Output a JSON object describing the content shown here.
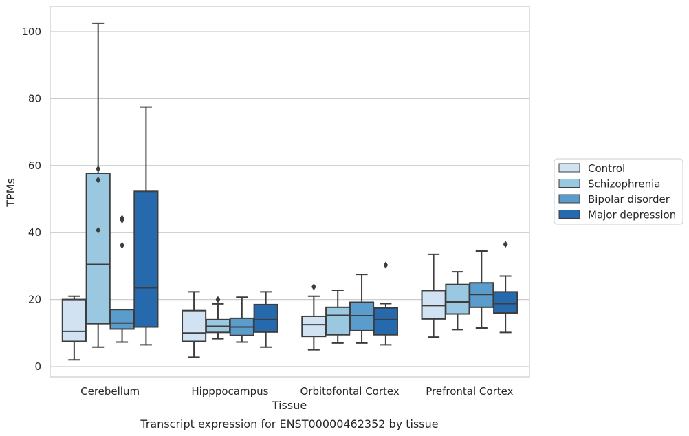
{
  "caption": "Transcript expression for ENST00000462352 by tissue",
  "chart_data": {
    "type": "box",
    "title": "",
    "xlabel": "Tissue",
    "ylabel": "TPMs",
    "ylim": [
      -3,
      107.5
    ],
    "yticks": [
      0,
      20,
      40,
      60,
      80,
      100
    ],
    "grid": "horizontal",
    "legend_position": "right",
    "categories": [
      "Cerebellum",
      "Hipppocampus",
      "Orbitofontal Cortex",
      "Prefrontal Cortex"
    ],
    "series": [
      {
        "name": "Control",
        "color": "#d1e2f2",
        "boxes": [
          {
            "whislo": 2.0,
            "q1": 7.5,
            "med": 10.5,
            "q3": 20.0,
            "whishi": 21.0,
            "fliers": []
          },
          {
            "whislo": 2.8,
            "q1": 7.5,
            "med": 10.0,
            "q3": 16.7,
            "whishi": 22.3,
            "fliers": []
          },
          {
            "whislo": 5.0,
            "q1": 9.0,
            "med": 12.5,
            "q3": 15.0,
            "whishi": 21.0,
            "fliers": [
              23.8
            ]
          },
          {
            "whislo": 8.8,
            "q1": 14.2,
            "med": 18.2,
            "q3": 22.7,
            "whishi": 33.5,
            "fliers": []
          }
        ]
      },
      {
        "name": "Schizophrenia",
        "color": "#9ac8e0",
        "boxes": [
          {
            "whislo": 5.8,
            "q1": 12.8,
            "med": 30.5,
            "q3": 57.7,
            "whishi": 102.5,
            "fliers": [
              59.0,
              55.7,
              40.7
            ]
          },
          {
            "whislo": 8.3,
            "q1": 10.2,
            "med": 12.0,
            "q3": 14.0,
            "whishi": 18.7,
            "fliers": [
              20.0
            ]
          },
          {
            "whislo": 7.0,
            "q1": 9.5,
            "med": 15.3,
            "q3": 17.7,
            "whishi": 22.8,
            "fliers": []
          },
          {
            "whislo": 11.0,
            "q1": 15.7,
            "med": 19.3,
            "q3": 24.5,
            "whishi": 28.3,
            "fliers": []
          }
        ]
      },
      {
        "name": "Bipolar disorder",
        "color": "#5a9ccb",
        "boxes": [
          {
            "whislo": 7.3,
            "q1": 11.2,
            "med": 13.0,
            "q3": 17.0,
            "whishi": 17.0,
            "fliers": [
              44.3,
              43.7,
              36.2
            ]
          },
          {
            "whislo": 7.3,
            "q1": 9.3,
            "med": 11.8,
            "q3": 14.4,
            "whishi": 20.7,
            "fliers": []
          },
          {
            "whislo": 7.0,
            "q1": 10.7,
            "med": 15.2,
            "q3": 19.2,
            "whishi": 27.5,
            "fliers": []
          },
          {
            "whislo": 11.5,
            "q1": 17.7,
            "med": 21.5,
            "q3": 25.0,
            "whishi": 34.5,
            "fliers": []
          }
        ]
      },
      {
        "name": "Major depression",
        "color": "#2669ac",
        "boxes": [
          {
            "whislo": 6.5,
            "q1": 11.8,
            "med": 23.5,
            "q3": 52.3,
            "whishi": 77.5,
            "fliers": []
          },
          {
            "whislo": 5.8,
            "q1": 10.3,
            "med": 14.0,
            "q3": 18.5,
            "whishi": 22.3,
            "fliers": []
          },
          {
            "whislo": 6.5,
            "q1": 9.5,
            "med": 14.0,
            "q3": 17.5,
            "whishi": 18.8,
            "fliers": [
              30.3
            ]
          },
          {
            "whislo": 10.2,
            "q1": 16.0,
            "med": 18.8,
            "q3": 22.3,
            "whishi": 27.0,
            "fliers": [
              36.5
            ]
          }
        ]
      }
    ]
  }
}
